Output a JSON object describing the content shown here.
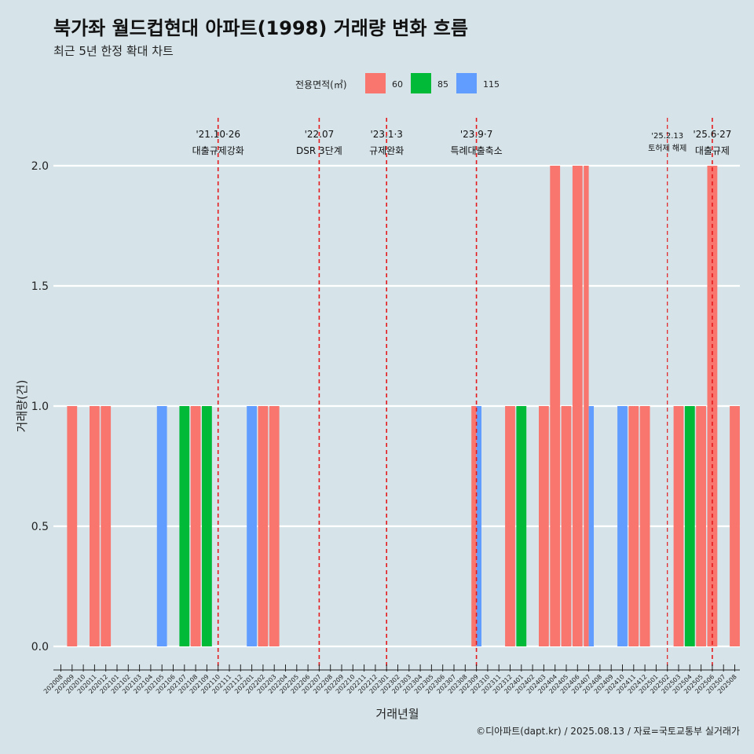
{
  "title": "북가좌 월드컵현대 아파트(1998) 거래량 변화 흐름",
  "subtitle": "최근 5년 한정 확대 차트",
  "caption": "©디아파트(dapt.kr) / 2025.08.13 / 자료=국토교통부 실거래가",
  "colors": {
    "60": "#f8766d",
    "85": "#00ba38",
    "115": "#619cff",
    "background": "#d6e4ea",
    "grid": "#ffffff",
    "event_line": "#e41a1c"
  },
  "chart_data": {
    "type": "bar",
    "xlabel": "거래년월",
    "ylabel": "거래량(건)",
    "ylim": [
      0,
      2.0
    ],
    "yticks": [
      0.0,
      0.5,
      1.0,
      1.5,
      2.0
    ],
    "legend": {
      "title": "전용면적(㎡)",
      "position": "top",
      "entries": [
        "60",
        "85",
        "115"
      ]
    },
    "categories": [
      "202008",
      "202009",
      "202010",
      "202011",
      "202012",
      "202101",
      "202102",
      "202103",
      "202104",
      "202105",
      "202106",
      "202107",
      "202108",
      "202109",
      "202110",
      "202111",
      "202112",
      "202201",
      "202202",
      "202203",
      "202204",
      "202205",
      "202206",
      "202207",
      "202208",
      "202209",
      "202210",
      "202211",
      "202212",
      "202301",
      "202302",
      "202303",
      "202304",
      "202305",
      "202306",
      "202307",
      "202308",
      "202309",
      "202310",
      "202311",
      "202312",
      "202401",
      "202402",
      "202403",
      "202404",
      "202405",
      "202406",
      "202407",
      "202408",
      "202409",
      "202410",
      "202411",
      "202412",
      "202501",
      "202502",
      "202503",
      "202504",
      "202505",
      "202506",
      "202507",
      "202508"
    ],
    "bars": [
      {
        "month": "202009",
        "series": "60",
        "value": 1
      },
      {
        "month": "202011",
        "series": "60",
        "value": 1
      },
      {
        "month": "202012",
        "series": "60",
        "value": 1
      },
      {
        "month": "202105",
        "series": "115",
        "value": 1
      },
      {
        "month": "202107",
        "series": "85",
        "value": 1
      },
      {
        "month": "202108",
        "series": "60",
        "value": 1
      },
      {
        "month": "202109",
        "series": "85",
        "value": 1
      },
      {
        "month": "202201",
        "series": "115",
        "value": 1
      },
      {
        "month": "202202",
        "series": "60",
        "value": 1
      },
      {
        "month": "202203",
        "series": "60",
        "value": 1
      },
      {
        "month": "202309",
        "series": "60",
        "value": 1
      },
      {
        "month": "202309",
        "series": "115",
        "value": 1
      },
      {
        "month": "202312",
        "series": "60",
        "value": 1
      },
      {
        "month": "202401",
        "series": "85",
        "value": 1
      },
      {
        "month": "202403",
        "series": "60",
        "value": 1
      },
      {
        "month": "202404",
        "series": "60",
        "value": 2
      },
      {
        "month": "202405",
        "series": "60",
        "value": 1
      },
      {
        "month": "202406",
        "series": "60",
        "value": 2
      },
      {
        "month": "202407",
        "series": "60",
        "value": 2
      },
      {
        "month": "202407",
        "series": "115",
        "value": 1
      },
      {
        "month": "202410",
        "series": "115",
        "value": 1
      },
      {
        "month": "202411",
        "series": "60",
        "value": 1
      },
      {
        "month": "202412",
        "series": "60",
        "value": 1
      },
      {
        "month": "202503",
        "series": "60",
        "value": 1
      },
      {
        "month": "202504",
        "series": "85",
        "value": 1
      },
      {
        "month": "202505",
        "series": "60",
        "value": 1
      },
      {
        "month": "202506",
        "series": "60",
        "value": 2
      },
      {
        "month": "202508",
        "series": "60",
        "value": 1
      }
    ],
    "annotations": [
      {
        "month_index": 14.0,
        "date": "'21.10·26",
        "label": "대출규제강화",
        "small": false
      },
      {
        "month_index": 23.0,
        "date": "'22.07",
        "label": "DSR 3단계",
        "small": false
      },
      {
        "month_index": 29.0,
        "date": "'23.1·3",
        "label": "규제완화",
        "small": false
      },
      {
        "month_index": 37.0,
        "date": "'23.9·7",
        "label": "특례대출축소",
        "small": false
      },
      {
        "month_index": 54.0,
        "date": "'25.2.13",
        "label": "토허제 해제",
        "small": true
      },
      {
        "month_index": 58.0,
        "date": "'25.6·27",
        "label": "대출규제",
        "small": false
      }
    ]
  }
}
